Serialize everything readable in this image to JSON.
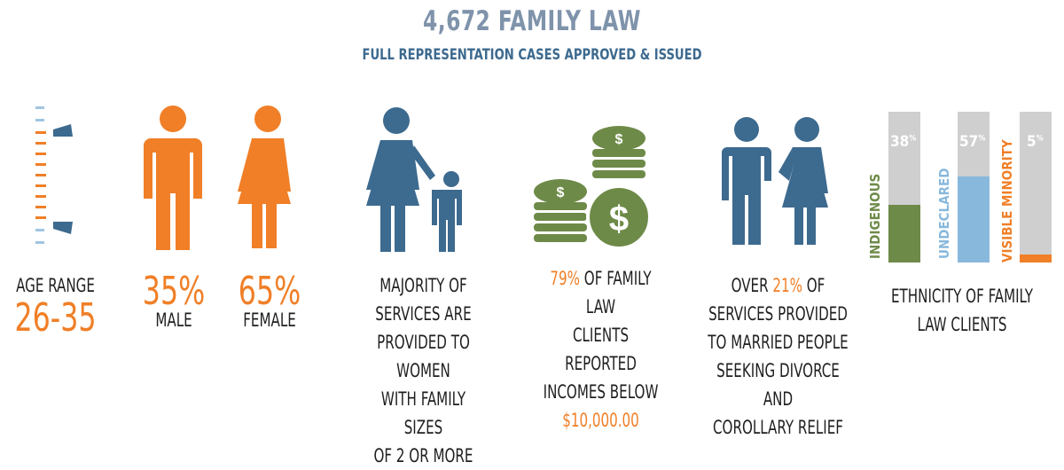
{
  "header": {
    "title": "4,672 FAMILY LAW",
    "subtitle": "FULL REPRESENTATION CASES APPROVED & ISSUED"
  },
  "age": {
    "label": "AGE RANGE",
    "value": "26-35"
  },
  "gender": {
    "male_pct": "35%",
    "male_label": "MALE",
    "female_pct": "65%",
    "female_label": "FEMALE"
  },
  "family": {
    "lines": [
      "MAJORITY OF",
      "SERVICES ARE",
      "PROVIDED TO WOMEN",
      "WITH FAMILY SIZES",
      "OF 2 OR MORE"
    ]
  },
  "income": {
    "pct": "79%",
    "line1_rest": " OF FAMILY LAW",
    "line2": "CLIENTS REPORTED",
    "line3": "INCOMES BELOW",
    "amount": "$10,000.00"
  },
  "divorce": {
    "line1_pre": "OVER ",
    "pct": "21%",
    "line1_post": " OF",
    "line2": "SERVICES PROVIDED",
    "line3": "TO MARRIED PEOPLE",
    "line4": "SEEKING DIVORCE AND",
    "line5": "COROLLARY RELIEF"
  },
  "ethnicity": {
    "caption_line1": "ETHNICITY OF FAMILY",
    "caption_line2": "LAW CLIENTS",
    "bars": [
      {
        "name": "INDIGENOUS",
        "pct_num": "38",
        "pct_sign": "%",
        "value": 0.38,
        "color": "#6e8a48"
      },
      {
        "name": "UNDECLARED",
        "pct_num": "57",
        "pct_sign": "%",
        "value": 0.57,
        "color": "#88b8dc"
      },
      {
        "name": "VISIBLE MINORITY",
        "pct_num": "5",
        "pct_sign": "%",
        "value": 0.05,
        "color": "#f07f27"
      }
    ]
  },
  "colors": {
    "orange": "#f07f27",
    "blue": "#3d6a8f",
    "green": "#6e8a48",
    "gray": "#cfcfcf",
    "title_gray": "#7f93ab"
  },
  "icons": [
    "age-gauge-icon",
    "male-icon",
    "female-icon",
    "mother-child-icon",
    "money-coins-icon",
    "couple-icon"
  ]
}
